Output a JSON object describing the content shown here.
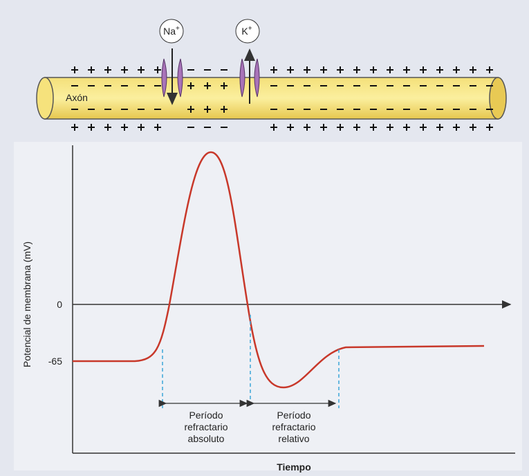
{
  "ions": [
    {
      "label": "Na",
      "charge": "+"
    },
    {
      "label": "K",
      "charge": "+"
    }
  ],
  "axon_label": "Axón",
  "y_axis": {
    "label": "Potencial de membrana (mV)",
    "ticks": [
      "0",
      "-65"
    ]
  },
  "x_axis": {
    "label": "Tiempo"
  },
  "periods": [
    [
      "Período",
      "refractario",
      "absoluto"
    ],
    [
      "Período",
      "refractario",
      "relativo"
    ]
  ]
}
